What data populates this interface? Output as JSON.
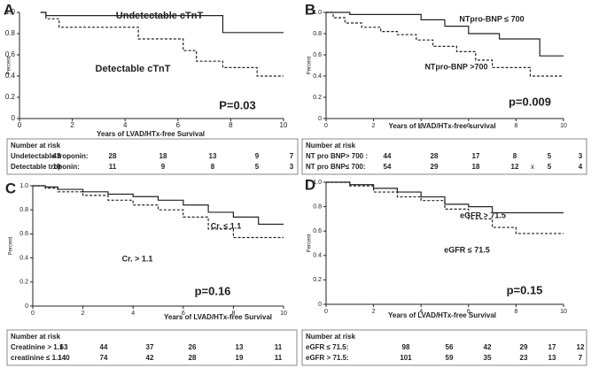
{
  "chart_data": [
    {
      "type": "line",
      "step": true,
      "panel": "A",
      "y_label": "Percent",
      "x_label": "Years of LVAD/HTx-free Survival",
      "annotation": "P=0.03",
      "xlim": [
        0,
        10
      ],
      "xticks": [
        0,
        2,
        4,
        6,
        8,
        10
      ],
      "ylim": [
        0,
        1
      ],
      "yticks": [
        0,
        0.2,
        0.4,
        0.6,
        0.8,
        {
          "value": 1,
          "label": "1.0"
        }
      ],
      "series": [
        {
          "name": "Undetectable cTnT",
          "color": "#222222",
          "dashed": false,
          "x": [
            0.8,
            1.0,
            7.7,
            10
          ],
          "values": [
            1.0,
            0.97,
            0.81,
            0.81
          ]
        },
        {
          "name": "Detectable cTnT",
          "color": "#222222",
          "dashed": true,
          "x": [
            0.8,
            1.0,
            1.5,
            4.5,
            6.2,
            6.7,
            7.7,
            9.0,
            10
          ],
          "values": [
            1.0,
            0.94,
            0.86,
            0.75,
            0.64,
            0.54,
            0.48,
            0.4,
            0.4
          ]
        }
      ],
      "risk_table": {
        "header": "Number at risk",
        "rows": [
          {
            "label": "Undetectable troponin:",
            "values": [
              43,
              28,
              18,
              13,
              9,
              7
            ]
          },
          {
            "label": "Detectable troponin:",
            "values": [
              19,
              11,
              9,
              8,
              5,
              3
            ]
          }
        ]
      }
    },
    {
      "type": "line",
      "step": true,
      "panel": "B",
      "y_label": "Percent",
      "x_label": "Years of LVAD/HTx-free survival",
      "annotation": "p=0.009",
      "xlim": [
        0,
        10
      ],
      "xticks": [
        0,
        2,
        4,
        6,
        8,
        10
      ],
      "ylim": [
        0,
        1
      ],
      "yticks": [
        0,
        0.2,
        0.4,
        0.6,
        0.8,
        {
          "value": 1,
          "label": "1.0"
        }
      ],
      "series": [
        {
          "name": "NTpro-BNP ≤ 700",
          "color": "#222222",
          "dashed": false,
          "x": [
            0,
            1,
            4,
            5,
            6,
            7.3,
            9,
            10
          ],
          "values": [
            1.0,
            0.98,
            0.93,
            0.87,
            0.8,
            0.75,
            0.59,
            0.59
          ]
        },
        {
          "name": "NTpro-BNP >700",
          "color": "#222222",
          "dashed": true,
          "x": [
            0,
            0.3,
            0.8,
            1.5,
            2.3,
            3.0,
            3.8,
            4.5,
            5.5,
            6.3,
            7.0,
            8.6,
            10
          ],
          "values": [
            1.0,
            0.95,
            0.9,
            0.86,
            0.82,
            0.79,
            0.74,
            0.68,
            0.63,
            0.55,
            0.48,
            0.4,
            0.4
          ]
        }
      ],
      "risk_table": {
        "header": "Number at risk",
        "rows": [
          {
            "label": "NT pro BNP> 700 :",
            "values": [
              44,
              28,
              17,
              8,
              5,
              3
            ]
          },
          {
            "label": "NT pro BNP≤ 700:",
            "values": [
              54,
              29,
              18,
              12,
              5,
              4
            ],
            "mark": "x"
          }
        ]
      }
    },
    {
      "type": "line",
      "step": true,
      "panel": "C",
      "y_label": "Percent",
      "x_label": "Years of LVAD/HTx-free Survival",
      "annotation": "p=0.16",
      "xlim": [
        0,
        10
      ],
      "xticks": [
        0,
        2,
        4,
        6,
        8,
        10
      ],
      "ylim": [
        0,
        1
      ],
      "yticks": [
        0,
        0.2,
        0.4,
        0.6,
        0.8,
        {
          "value": 1,
          "label": "1.0"
        }
      ],
      "series": [
        {
          "name": "Cr. ≤ 1.1",
          "color": "#222222",
          "dashed": false,
          "x": [
            0,
            0.5,
            1,
            2,
            3,
            4,
            5,
            6,
            7,
            8,
            9,
            10
          ],
          "values": [
            1.0,
            0.99,
            0.97,
            0.95,
            0.93,
            0.91,
            0.88,
            0.84,
            0.78,
            0.74,
            0.68,
            0.68
          ]
        },
        {
          "name": "Cr. > 1.1",
          "color": "#222222",
          "dashed": true,
          "x": [
            0,
            0.5,
            1,
            2,
            3,
            4,
            5,
            6,
            7,
            8,
            9,
            10
          ],
          "values": [
            1.0,
            0.98,
            0.95,
            0.92,
            0.88,
            0.84,
            0.8,
            0.74,
            0.64,
            0.57,
            0.57,
            0.57
          ]
        }
      ],
      "risk_table": {
        "header": "Number at risk",
        "rows": [
          {
            "label": "Creatinine > 1.1 :",
            "values": [
              63,
              44,
              37,
              26,
              13,
              11
            ]
          },
          {
            "label": "creatinine ≤ 1.1 :",
            "values": [
              140,
              74,
              42,
              28,
              19,
              11
            ]
          }
        ]
      }
    },
    {
      "type": "line",
      "step": true,
      "panel": "D",
      "y_label": "Percent",
      "x_label": "Years of LVAD/HTx-free Survival",
      "annotation": "p=0.15",
      "xlim": [
        0,
        10
      ],
      "xticks": [
        0,
        2,
        4,
        6,
        8,
        10
      ],
      "ylim": [
        0,
        1
      ],
      "yticks": [
        0,
        0.2,
        0.4,
        0.6,
        0.8,
        {
          "value": 1,
          "label": "1.0"
        }
      ],
      "series": [
        {
          "name": "eGFR > 71.5",
          "color": "#222222",
          "dashed": false,
          "x": [
            0,
            1,
            2,
            3,
            4,
            5,
            6,
            7,
            8,
            10
          ],
          "values": [
            1.0,
            0.98,
            0.95,
            0.92,
            0.88,
            0.82,
            0.8,
            0.75,
            0.75,
            0.75
          ]
        },
        {
          "name": "eGFR ≤ 71.5",
          "color": "#222222",
          "dashed": true,
          "x": [
            0,
            1,
            2,
            3,
            4,
            5,
            6,
            7,
            8,
            10
          ],
          "values": [
            1.0,
            0.97,
            0.92,
            0.88,
            0.85,
            0.78,
            0.7,
            0.63,
            0.58,
            0.58
          ]
        }
      ],
      "risk_table": {
        "header": "Number at risk",
        "rows": [
          {
            "label": "eGFR ≤ 71.5:",
            "values": [
              98,
              56,
              42,
              29,
              17,
              12
            ]
          },
          {
            "label": "eGFR > 71.5:",
            "values": [
              101,
              59,
              35,
              23,
              13,
              7
            ]
          }
        ]
      }
    }
  ]
}
